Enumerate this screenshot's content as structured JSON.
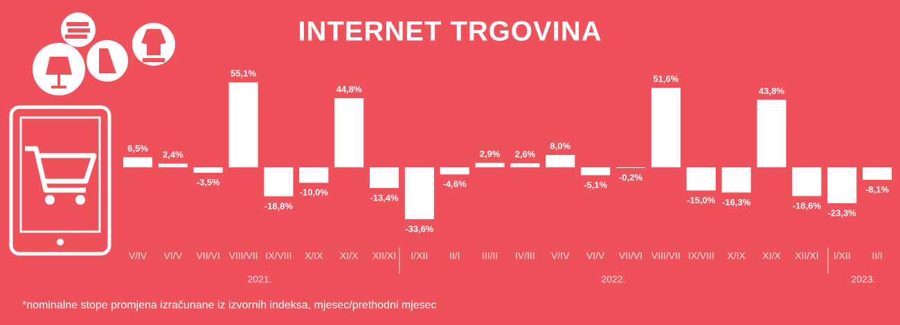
{
  "chart_data": {
    "type": "bar",
    "title": "INTERNET TRGOVINA",
    "categories": [
      "V/IV",
      "VI/V",
      "VII/VI",
      "VIII/VII",
      "IX/VIII",
      "X/IX",
      "XI/X",
      "XII/XI",
      "I/XII",
      "II/I",
      "III/II",
      "IV/III",
      "V/IV",
      "VI/V",
      "VII/VI",
      "VIII/VII",
      "IX/VIII",
      "X/IX",
      "XI/X",
      "XII/XI",
      "I/XII",
      "II/I"
    ],
    "values": [
      6.5,
      2.4,
      -3.5,
      55.1,
      -18.8,
      -10.0,
      44.8,
      -13.4,
      -33.6,
      -4.6,
      2.9,
      2.6,
      8.0,
      -5.1,
      -0.2,
      51.6,
      -15.0,
      -16.3,
      43.8,
      -18.6,
      -23.3,
      -8.1
    ],
    "value_labels": [
      "6,5%",
      "2,4%",
      "-3,5%",
      "55,1%",
      "-18,8%",
      "-10,0%",
      "44,8%",
      "-13,4%",
      "-33,6%",
      "-4,6%",
      "2,9%",
      "2,6%",
      "8,0%",
      "-5,1%",
      "-0,2%",
      "51,6%",
      "-15,0%",
      "-16,3%",
      "43,8%",
      "-18,6%",
      "-23,3%",
      "-8,1%"
    ],
    "color": "#ffffff",
    "year_labels": [
      "2021.",
      "2022.",
      "2023."
    ],
    "footnote": "*nominalne stope promjena izračunane iz izvornih indeksa, mjesec/prethodni mjesec"
  }
}
